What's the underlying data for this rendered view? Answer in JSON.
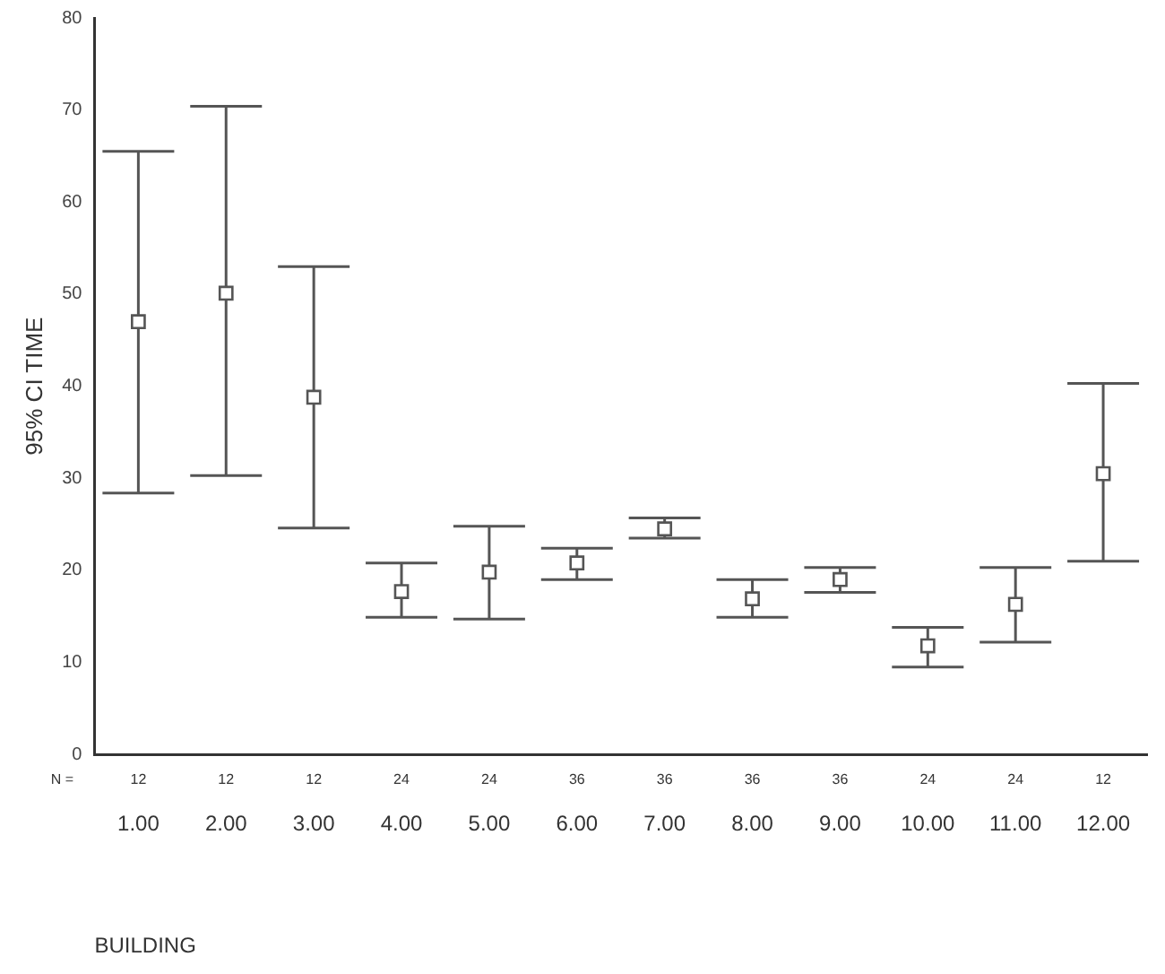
{
  "chart_data": {
    "type": "scatter",
    "xlabel": "BUILDING",
    "ylabel": "95% CI TIME",
    "categories": [
      "1.00",
      "2.00",
      "3.00",
      "4.00",
      "5.00",
      "6.00",
      "7.00",
      "8.00",
      "9.00",
      "10.00",
      "11.00",
      "12.00"
    ],
    "values": [
      47,
      50.1,
      38.8,
      17.7,
      19.8,
      20.8,
      24.5,
      16.9,
      19.0,
      11.8,
      16.3,
      30.5
    ],
    "errors": [
      [
        28.4,
        65.5
      ],
      [
        30.3,
        70.4
      ],
      [
        24.6,
        53
      ],
      [
        14.9,
        20.8
      ],
      [
        14.7,
        24.8
      ],
      [
        19.0,
        22.4
      ],
      [
        23.5,
        25.7
      ],
      [
        14.9,
        19.0
      ],
      [
        17.6,
        20.3
      ],
      [
        9.5,
        13.8
      ],
      [
        12.2,
        20.3
      ],
      [
        21.0,
        40.3
      ]
    ],
    "color": "#555555",
    "marker": "square",
    "grid": false,
    "legend": false,
    "ylim": [
      0,
      80
    ],
    "yticks": [
      0,
      10,
      20,
      30,
      40,
      50,
      60,
      70,
      80
    ],
    "annotations": [
      "N =",
      "12",
      "12",
      "12",
      "24",
      "24",
      "36",
      "36",
      "36",
      "36",
      "24",
      "24",
      "12"
    ]
  }
}
